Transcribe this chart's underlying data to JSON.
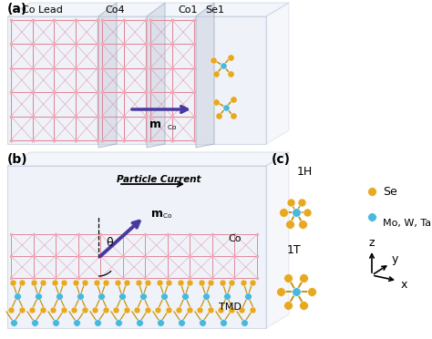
{
  "bg_color": "#ffffff",
  "panel_a_label": "(a)",
  "panel_b_label": "(b)",
  "panel_c_label": "(c)",
  "co_lead_label": "Co Lead",
  "co4_label": "Co4",
  "co1_label": "Co1",
  "se1_label": "Se1",
  "particle_current_label": "Particle Current",
  "theta_label": "θ",
  "co_label": "Co",
  "tmd_label": "TMD",
  "h1_label": "1H",
  "t1_label": "1T",
  "se_label": "Se",
  "mo_w_ta_label": "Mo, W, Ta",
  "pink_atom": "#f0a8b8",
  "pink_line": "#e08898",
  "gold": "#e8a820",
  "blue": "#48b8e0",
  "purple": "#4838a0",
  "box_edge": "#a8b8cc",
  "box_face": "#dde4f0",
  "bond_gold": "#c89010"
}
